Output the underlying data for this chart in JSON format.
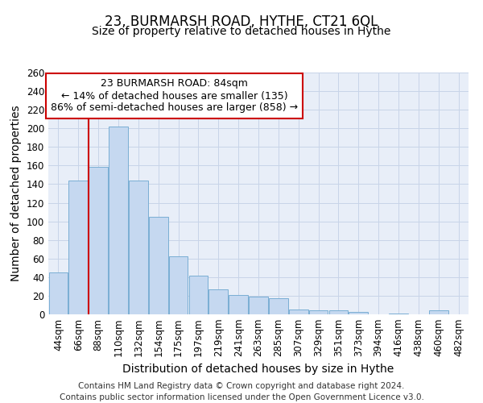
{
  "title": "23, BURMARSH ROAD, HYTHE, CT21 6QL",
  "subtitle": "Size of property relative to detached houses in Hythe",
  "xlabel": "Distribution of detached houses by size in Hythe",
  "ylabel": "Number of detached properties",
  "categories": [
    "44sqm",
    "66sqm",
    "88sqm",
    "110sqm",
    "132sqm",
    "154sqm",
    "175sqm",
    "197sqm",
    "219sqm",
    "241sqm",
    "263sqm",
    "285sqm",
    "307sqm",
    "329sqm",
    "351sqm",
    "373sqm",
    "394sqm",
    "416sqm",
    "438sqm",
    "460sqm",
    "482sqm"
  ],
  "values": [
    45,
    144,
    159,
    202,
    144,
    105,
    62,
    42,
    27,
    21,
    19,
    17,
    5,
    4,
    4,
    3,
    0,
    1,
    0,
    4,
    0
  ],
  "bar_color": "#c5d8f0",
  "bar_edge_color": "#7aaed4",
  "annotation_text_line1": "23 BURMARSH ROAD: 84sqm",
  "annotation_text_line2": "← 14% of detached houses are smaller (135)",
  "annotation_text_line3": "86% of semi-detached houses are larger (858) →",
  "annotation_box_color": "#ffffff",
  "annotation_box_edge_color": "#cc0000",
  "red_line_color": "#cc0000",
  "ylim": [
    0,
    260
  ],
  "yticks": [
    0,
    20,
    40,
    60,
    80,
    100,
    120,
    140,
    160,
    180,
    200,
    220,
    240,
    260
  ],
  "grid_color": "#c8d4e8",
  "background_color": "#e8eef8",
  "footer_line1": "Contains HM Land Registry data © Crown copyright and database right 2024.",
  "footer_line2": "Contains public sector information licensed under the Open Government Licence v3.0.",
  "title_fontsize": 12,
  "subtitle_fontsize": 10,
  "axis_label_fontsize": 10,
  "tick_fontsize": 8.5,
  "footer_fontsize": 7.5,
  "annotation_fontsize": 9
}
